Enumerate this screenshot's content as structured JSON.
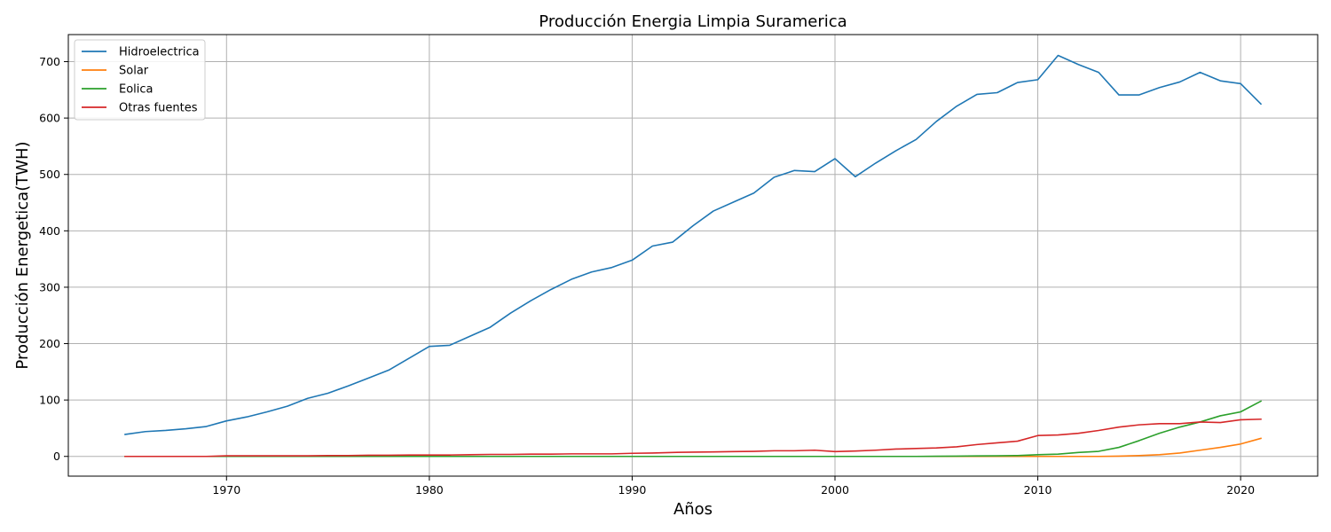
{
  "chart_data": {
    "type": "line",
    "title": "Producción Energia Limpia Suramerica",
    "xlabel": "Años",
    "ylabel": "Producción Energetica(TWH)",
    "xlim": [
      1962.2,
      2023.8
    ],
    "ylim": [
      -35,
      748
    ],
    "xticks": [
      1970,
      1980,
      1990,
      2000,
      2010,
      2020
    ],
    "yticks": [
      0,
      100,
      200,
      300,
      400,
      500,
      600,
      700
    ],
    "grid": true,
    "legend_position": "upper left",
    "x": [
      1965,
      1966,
      1967,
      1968,
      1969,
      1970,
      1971,
      1972,
      1973,
      1974,
      1975,
      1976,
      1977,
      1978,
      1979,
      1980,
      1981,
      1982,
      1983,
      1984,
      1985,
      1986,
      1987,
      1988,
      1989,
      1990,
      1991,
      1992,
      1993,
      1994,
      1995,
      1996,
      1997,
      1998,
      1999,
      2000,
      2001,
      2002,
      2003,
      2004,
      2005,
      2006,
      2007,
      2008,
      2009,
      2010,
      2011,
      2012,
      2013,
      2014,
      2015,
      2016,
      2017,
      2018,
      2019,
      2020,
      2021
    ],
    "series": [
      {
        "name": "Hidroelectrica",
        "color": "#1f77b4",
        "values": [
          39,
          44,
          46,
          49,
          53,
          63,
          70,
          79,
          89,
          103,
          112,
          125,
          139,
          153,
          174,
          195,
          197,
          213,
          229,
          254,
          276,
          296,
          314,
          327,
          335,
          348,
          373,
          380,
          409,
          435,
          451,
          467,
          495,
          507,
          505,
          528,
          496,
          520,
          542,
          562,
          594,
          621,
          642,
          645,
          663,
          668,
          711,
          695,
          681,
          641,
          641,
          654,
          664,
          681,
          666,
          661,
          625
        ]
      },
      {
        "name": "Solar",
        "color": "#ff7f0e",
        "values": [
          0,
          0,
          0,
          0,
          0,
          0,
          0,
          0,
          0,
          0,
          0,
          0,
          0,
          0,
          0,
          0,
          0,
          0,
          0,
          0,
          0,
          0,
          0,
          0,
          0,
          0,
          0,
          0,
          0,
          0,
          0,
          0,
          0,
          0,
          0,
          0,
          0,
          0,
          0,
          0,
          0,
          0,
          0,
          0,
          0,
          0,
          0,
          0,
          0,
          0.5,
          1.5,
          3,
          6,
          11,
          16,
          22,
          32
        ]
      },
      {
        "name": "Eolica",
        "color": "#2ca02c",
        "values": [
          0,
          0,
          0,
          0,
          0,
          0,
          0,
          0,
          0,
          0,
          0,
          0,
          0,
          0,
          0,
          0,
          0,
          0,
          0,
          0,
          0,
          0,
          0,
          0,
          0,
          0,
          0,
          0,
          0,
          0,
          0,
          0,
          0,
          0,
          0,
          0,
          0,
          0,
          0,
          0,
          0.3,
          0.5,
          0.8,
          1,
          1.5,
          3,
          4,
          7,
          9,
          16,
          28,
          41,
          52,
          61,
          72,
          79,
          98
        ]
      },
      {
        "name": "Otras fuentes",
        "color": "#d62728",
        "values": [
          0,
          0,
          0,
          0,
          0,
          1,
          1,
          1,
          1,
          1,
          1.5,
          1.5,
          2,
          2,
          2.5,
          2.5,
          2.5,
          3,
          3.5,
          3.5,
          4,
          4,
          4.5,
          4.5,
          4.5,
          5.5,
          6,
          7,
          7.5,
          8,
          8.5,
          9,
          10,
          10,
          11,
          8.5,
          9.5,
          11,
          13,
          14,
          15,
          17,
          21,
          24,
          27,
          37,
          38,
          41,
          46,
          52,
          56,
          58,
          58,
          61,
          60,
          65,
          66
        ]
      }
    ]
  }
}
